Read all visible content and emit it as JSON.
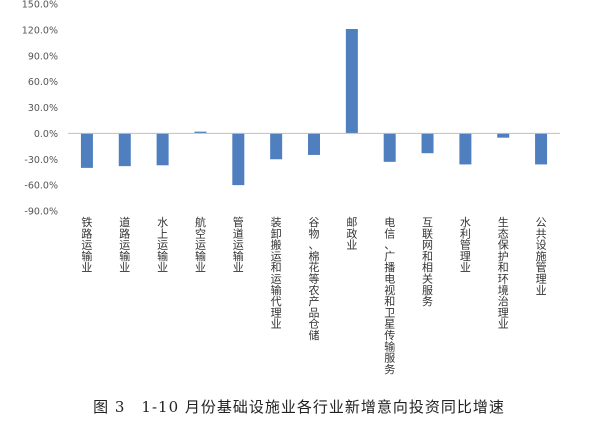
{
  "chart_data": {
    "type": "bar",
    "caption": "图 3　1-10 月份基础设施业各行业新增意向投资同比增速",
    "ylim": [
      -90,
      150
    ],
    "yticks": [
      150,
      120,
      90,
      60,
      30,
      0,
      -30,
      -60,
      -90
    ],
    "ytick_labels": [
      "150.0%",
      "120.0%",
      "90.0%",
      "60.0%",
      "30.0%",
      "0.0%",
      "-30.0%",
      "-60.0%",
      "-90.0%"
    ],
    "grid": false,
    "legend": "none",
    "bar_color": "#4f7fbf",
    "categories": [
      "铁路运输业",
      "道路运输业",
      "水上运输业",
      "航空运输业",
      "管道运输业",
      "装卸搬运和运输代理业",
      "谷物、棉花等农产品仓储",
      "邮政业",
      "电信、广播电视和卫星传输服务",
      "互联网和相关服务",
      "水利管理业",
      "生态保护和环境治理业",
      "公共设施管理业"
    ],
    "values": [
      -40,
      -38,
      -37,
      2,
      -60,
      -30,
      -25,
      121,
      -33,
      -23,
      -36,
      -5,
      -36
    ]
  }
}
